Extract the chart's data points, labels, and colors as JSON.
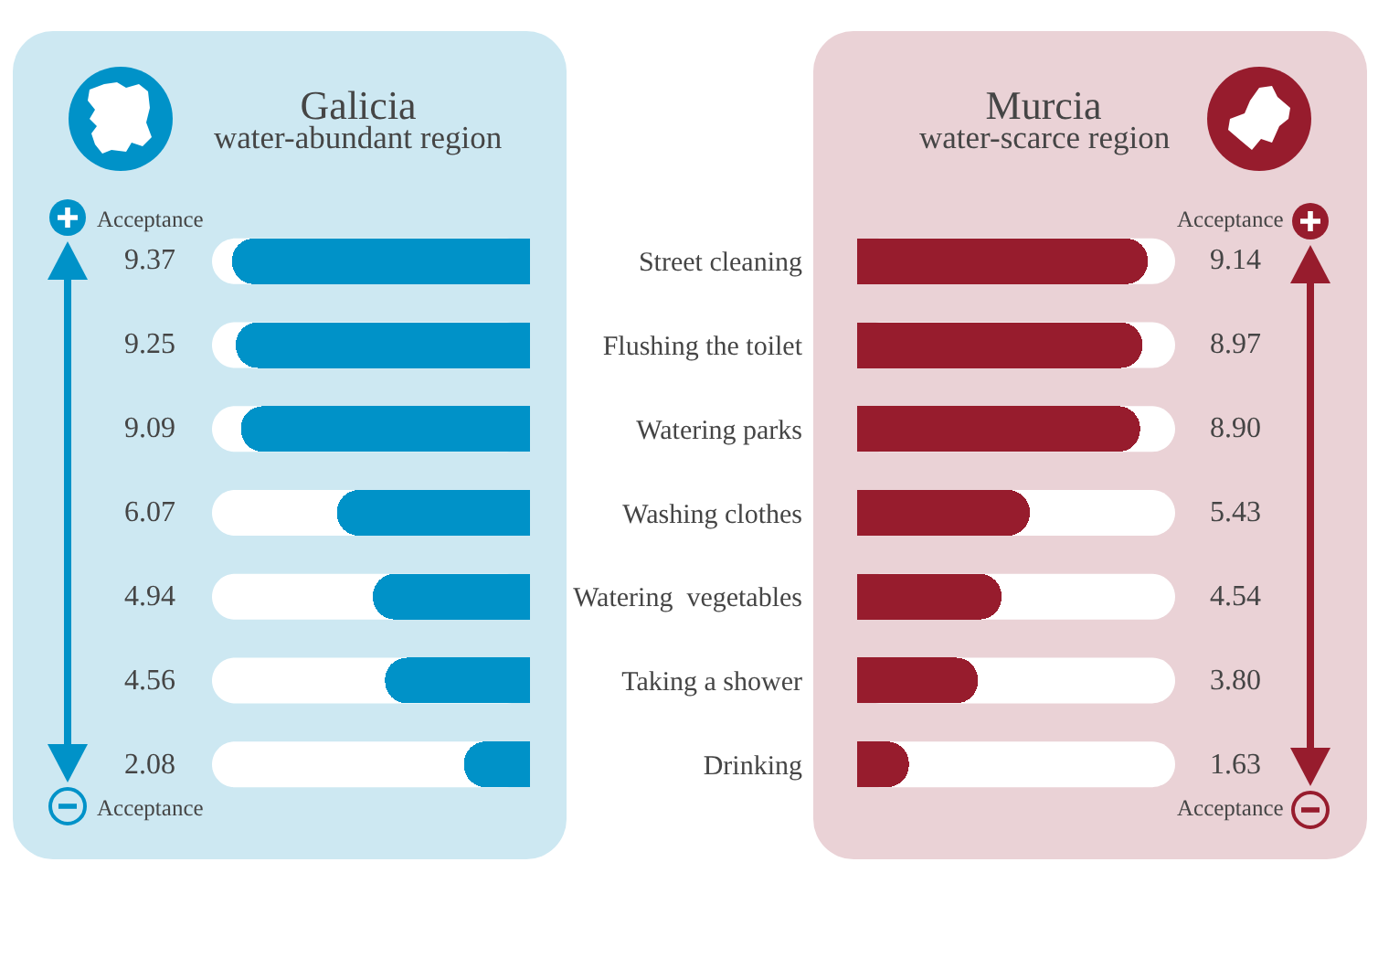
{
  "chart_data": [
    {
      "type": "bar",
      "orientation": "horizontal",
      "title": "Galicia",
      "subtitle": "water-abundant region",
      "categories": [
        "Street cleaning",
        "Flushing the toilet",
        "Watering parks",
        "Washing clothes",
        "Watering  vegetables",
        "Taking a shower",
        "Drinking"
      ],
      "values": [
        9.37,
        9.25,
        9.09,
        6.07,
        4.94,
        4.56,
        2.08
      ],
      "color": "#0092c8",
      "xlim": [
        10,
        0
      ],
      "data_labels": true,
      "tick_labels": false,
      "annotations": [
        "Acceptance",
        "Acceptance"
      ]
    },
    {
      "type": "bar",
      "orientation": "horizontal",
      "title": "Murcia",
      "subtitle": "water-scarce region",
      "categories": [
        "Street cleaning",
        "Flushing the toilet",
        "Watering parks",
        "Washing clothes",
        "Watering  vegetables",
        "Taking a shower",
        "Drinking"
      ],
      "values": [
        9.14,
        8.97,
        8.9,
        5.43,
        4.54,
        3.8,
        1.63
      ],
      "value_labels": [
        "9.14",
        "8.97",
        "8.90",
        "5.43",
        "4.54",
        "3.80",
        "1.63"
      ],
      "color": "#971c2d",
      "xlim": [
        0,
        10
      ],
      "tick_labels": "y",
      "annotations": [
        "Acceptance",
        "Acceptance"
      ]
    }
  ]
}
